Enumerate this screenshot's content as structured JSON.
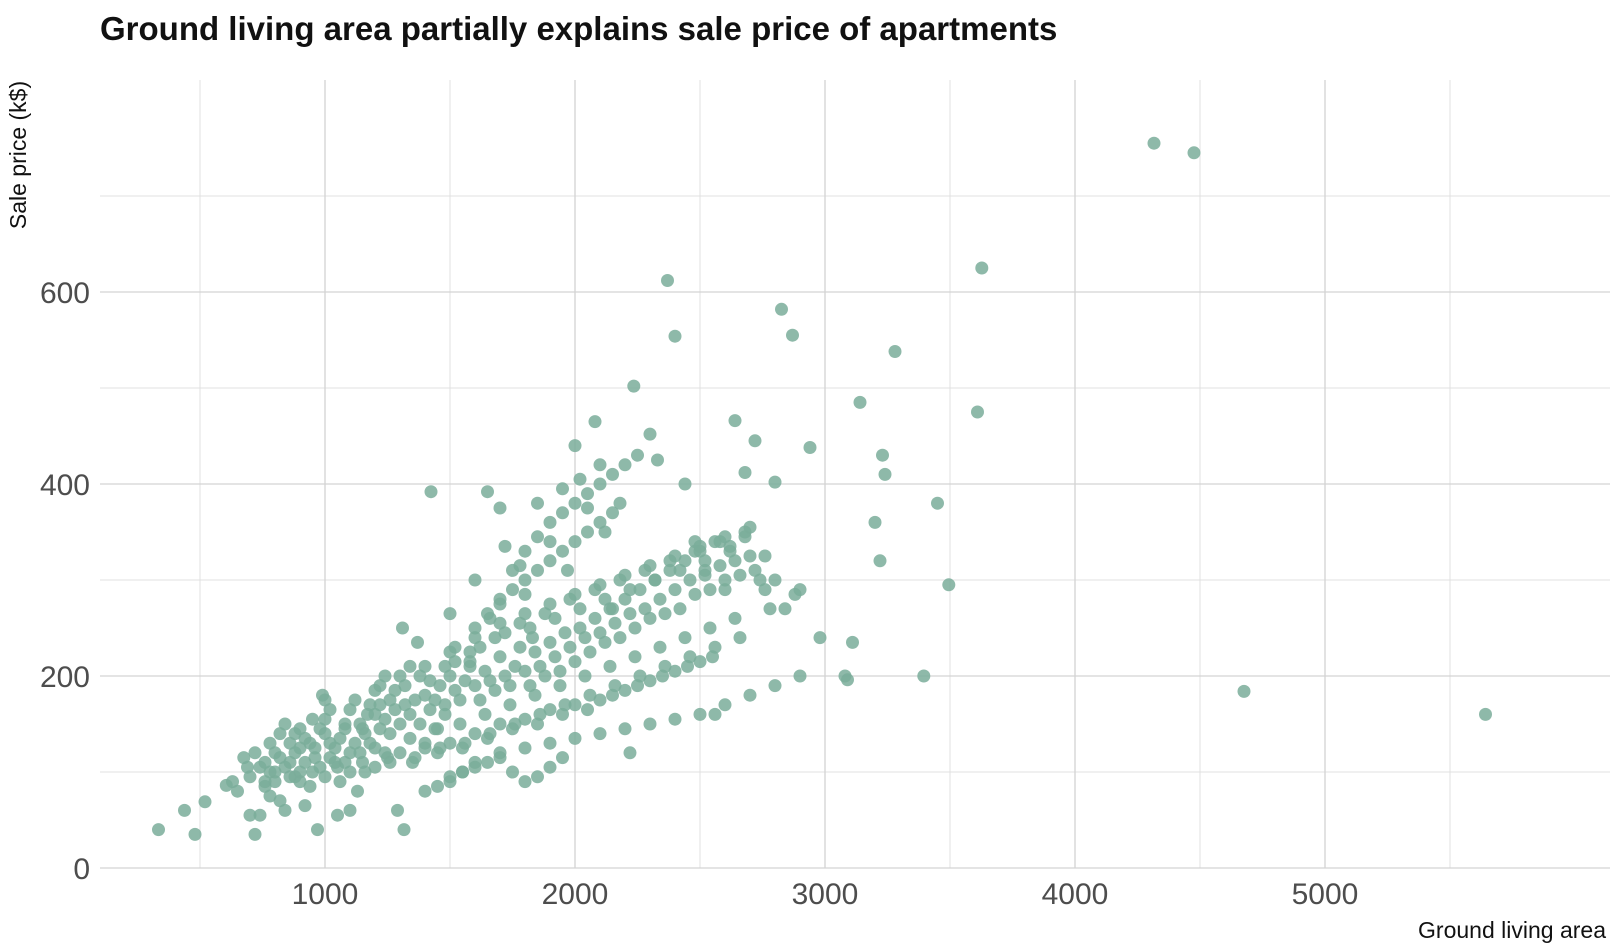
{
  "chart_data": {
    "type": "scatter",
    "title": "Ground living area partially explains sale price of apartments",
    "xlabel": "Ground living area",
    "ylabel": "Sale price (k$)",
    "xlim": [
      200,
      5700
    ],
    "ylim": [
      0,
      700
    ],
    "x_ticks": [
      1000,
      2000,
      3000,
      4000,
      5000
    ],
    "x_tick_labels": [
      "1000",
      "2000",
      "3000",
      "4000",
      "5000"
    ],
    "y_ticks": [
      0,
      200,
      400,
      600
    ],
    "y_tick_labels": [
      "0",
      "200",
      "400",
      "600"
    ],
    "x_minor_ticks": [
      500,
      1500,
      2500,
      3500,
      4500,
      5500
    ],
    "y_minor_ticks": [
      100,
      300,
      500,
      700
    ],
    "grid": true,
    "legend": "none",
    "point_color": "#7aad9a",
    "point_opacity": 0.85,
    "points": [
      [
        334,
        40
      ],
      [
        438,
        60
      ],
      [
        480,
        35
      ],
      [
        520,
        69
      ],
      [
        605,
        86
      ],
      [
        630,
        90
      ],
      [
        650,
        80
      ],
      [
        675,
        115
      ],
      [
        690,
        105
      ],
      [
        700,
        55
      ],
      [
        720,
        35
      ],
      [
        740,
        55
      ],
      [
        760,
        85
      ],
      [
        780,
        130
      ],
      [
        800,
        120
      ],
      [
        820,
        70
      ],
      [
        840,
        60
      ],
      [
        860,
        110
      ],
      [
        880,
        140
      ],
      [
        900,
        125
      ],
      [
        920,
        65
      ],
      [
        950,
        155
      ],
      [
        970,
        40
      ],
      [
        990,
        180
      ],
      [
        1000,
        175
      ],
      [
        1020,
        130
      ],
      [
        1050,
        55
      ],
      [
        1080,
        110
      ],
      [
        1100,
        60
      ],
      [
        1130,
        80
      ],
      [
        1150,
        145
      ],
      [
        1170,
        160
      ],
      [
        1200,
        125
      ],
      [
        1220,
        190
      ],
      [
        1240,
        200
      ],
      [
        1260,
        175
      ],
      [
        1290,
        60
      ],
      [
        1310,
        250
      ],
      [
        1316,
        40
      ],
      [
        1340,
        210
      ],
      [
        1370,
        235
      ],
      [
        1400,
        130
      ],
      [
        1424,
        392
      ],
      [
        1450,
        145
      ],
      [
        1480,
        170
      ],
      [
        1500,
        265
      ],
      [
        1520,
        230
      ],
      [
        1550,
        100
      ],
      [
        1580,
        215
      ],
      [
        1600,
        300
      ],
      [
        1650,
        392
      ],
      [
        1660,
        260
      ],
      [
        1700,
        375
      ],
      [
        1720,
        335
      ],
      [
        1780,
        315
      ],
      [
        1800,
        285
      ],
      [
        1830,
        240
      ],
      [
        1850,
        380
      ],
      [
        1900,
        340
      ],
      [
        1950,
        395
      ],
      [
        1970,
        310
      ],
      [
        2000,
        440
      ],
      [
        2020,
        405
      ],
      [
        2050,
        375
      ],
      [
        2080,
        465
      ],
      [
        2100,
        420
      ],
      [
        2120,
        350
      ],
      [
        2150,
        270
      ],
      [
        2180,
        380
      ],
      [
        2220,
        120
      ],
      [
        2235,
        502
      ],
      [
        2300,
        452
      ],
      [
        2330,
        425
      ],
      [
        2370,
        612
      ],
      [
        2400,
        554
      ],
      [
        2440,
        400
      ],
      [
        2480,
        340
      ],
      [
        2520,
        310
      ],
      [
        2560,
        160
      ],
      [
        2600,
        290
      ],
      [
        2640,
        466
      ],
      [
        2680,
        412
      ],
      [
        2720,
        445
      ],
      [
        2760,
        325
      ],
      [
        2800,
        402
      ],
      [
        2826,
        582
      ],
      [
        2870,
        555
      ],
      [
        2940,
        438
      ],
      [
        2980,
        240
      ],
      [
        3080,
        200
      ],
      [
        3090,
        196
      ],
      [
        3110,
        235
      ],
      [
        3140,
        485
      ],
      [
        3200,
        360
      ],
      [
        3220,
        320
      ],
      [
        3230,
        430
      ],
      [
        3240,
        410
      ],
      [
        3280,
        538
      ],
      [
        3395,
        200
      ],
      [
        3450,
        380
      ],
      [
        3495,
        295
      ],
      [
        3610,
        475
      ],
      [
        3627,
        625
      ],
      [
        4316,
        755
      ],
      [
        4476,
        745
      ],
      [
        4676,
        184
      ],
      [
        5642,
        160
      ],
      [
        760,
        110
      ],
      [
        780,
        100
      ],
      [
        800,
        90
      ],
      [
        820,
        115
      ],
      [
        840,
        105
      ],
      [
        860,
        95
      ],
      [
        880,
        120
      ],
      [
        900,
        100
      ],
      [
        920,
        110
      ],
      [
        940,
        130
      ],
      [
        960,
        115
      ],
      [
        980,
        105
      ],
      [
        1000,
        140
      ],
      [
        1020,
        115
      ],
      [
        1040,
        125
      ],
      [
        1060,
        135
      ],
      [
        1080,
        145
      ],
      [
        1100,
        120
      ],
      [
        1120,
        130
      ],
      [
        1140,
        150
      ],
      [
        1160,
        140
      ],
      [
        1180,
        130
      ],
      [
        1200,
        160
      ],
      [
        1220,
        145
      ],
      [
        1240,
        155
      ],
      [
        1260,
        140
      ],
      [
        1280,
        165
      ],
      [
        1300,
        150
      ],
      [
        1320,
        170
      ],
      [
        1340,
        160
      ],
      [
        1360,
        175
      ],
      [
        1380,
        150
      ],
      [
        1400,
        180
      ],
      [
        1420,
        165
      ],
      [
        1440,
        175
      ],
      [
        1460,
        190
      ],
      [
        1480,
        160
      ],
      [
        1500,
        200
      ],
      [
        1520,
        185
      ],
      [
        1540,
        175
      ],
      [
        1560,
        195
      ],
      [
        1580,
        210
      ],
      [
        1600,
        190
      ],
      [
        1620,
        175
      ],
      [
        1640,
        205
      ],
      [
        1660,
        195
      ],
      [
        1680,
        185
      ],
      [
        1700,
        220
      ],
      [
        1720,
        200
      ],
      [
        1740,
        190
      ],
      [
        1760,
        210
      ],
      [
        1780,
        230
      ],
      [
        1800,
        205
      ],
      [
        1820,
        190
      ],
      [
        1840,
        225
      ],
      [
        1860,
        210
      ],
      [
        1880,
        200
      ],
      [
        1900,
        235
      ],
      [
        1920,
        220
      ],
      [
        1940,
        205
      ],
      [
        1960,
        245
      ],
      [
        1980,
        230
      ],
      [
        2000,
        215
      ],
      [
        2020,
        250
      ],
      [
        2040,
        240
      ],
      [
        2060,
        225
      ],
      [
        2080,
        260
      ],
      [
        2100,
        245
      ],
      [
        2120,
        235
      ],
      [
        2140,
        270
      ],
      [
        2160,
        255
      ],
      [
        2180,
        240
      ],
      [
        2200,
        280
      ],
      [
        2220,
        265
      ],
      [
        2240,
        250
      ],
      [
        2260,
        290
      ],
      [
        2280,
        270
      ],
      [
        2300,
        260
      ],
      [
        2320,
        300
      ],
      [
        2340,
        280
      ],
      [
        2360,
        265
      ],
      [
        2380,
        310
      ],
      [
        2400,
        290
      ],
      [
        2420,
        270
      ],
      [
        2440,
        320
      ],
      [
        2460,
        300
      ],
      [
        2480,
        285
      ],
      [
        2500,
        330
      ],
      [
        2520,
        305
      ],
      [
        2540,
        290
      ],
      [
        2560,
        340
      ],
      [
        2580,
        315
      ],
      [
        2600,
        300
      ],
      [
        2620,
        335
      ],
      [
        2640,
        320
      ],
      [
        2660,
        305
      ],
      [
        2680,
        345
      ],
      [
        2700,
        325
      ],
      [
        2720,
        310
      ],
      [
        2740,
        300
      ],
      [
        2760,
        290
      ],
      [
        2780,
        270
      ],
      [
        2800,
        300
      ],
      [
        2840,
        270
      ],
      [
        2880,
        285
      ],
      [
        2900,
        290
      ],
      [
        900,
        90
      ],
      [
        950,
        100
      ],
      [
        1000,
        95
      ],
      [
        1050,
        105
      ],
      [
        1100,
        100
      ],
      [
        1150,
        110
      ],
      [
        1200,
        105
      ],
      [
        1250,
        115
      ],
      [
        1300,
        120
      ],
      [
        1350,
        110
      ],
      [
        1400,
        125
      ],
      [
        1450,
        120
      ],
      [
        1500,
        130
      ],
      [
        1550,
        125
      ],
      [
        1600,
        140
      ],
      [
        1650,
        135
      ],
      [
        1700,
        150
      ],
      [
        1750,
        145
      ],
      [
        1800,
        155
      ],
      [
        1850,
        150
      ],
      [
        1900,
        165
      ],
      [
        1950,
        160
      ],
      [
        2000,
        170
      ],
      [
        2050,
        165
      ],
      [
        2100,
        175
      ],
      [
        2150,
        180
      ],
      [
        2200,
        185
      ],
      [
        2250,
        190
      ],
      [
        2300,
        195
      ],
      [
        2350,
        200
      ],
      [
        2400,
        205
      ],
      [
        2450,
        210
      ],
      [
        2500,
        215
      ],
      [
        2550,
        220
      ],
      [
        1500,
        90
      ],
      [
        1600,
        110
      ],
      [
        1700,
        120
      ],
      [
        1800,
        125
      ],
      [
        1900,
        130
      ],
      [
        2000,
        135
      ],
      [
        2100,
        140
      ],
      [
        2200,
        145
      ],
      [
        2300,
        150
      ],
      [
        2400,
        155
      ],
      [
        2500,
        160
      ],
      [
        2600,
        170
      ],
      [
        2700,
        180
      ],
      [
        2800,
        190
      ],
      [
        2900,
        200
      ],
      [
        1700,
        280
      ],
      [
        1750,
        310
      ],
      [
        1800,
        330
      ],
      [
        1850,
        345
      ],
      [
        1900,
        360
      ],
      [
        1950,
        370
      ],
      [
        2000,
        380
      ],
      [
        2050,
        390
      ],
      [
        2100,
        400
      ],
      [
        2150,
        410
      ],
      [
        2200,
        420
      ],
      [
        2250,
        430
      ],
      [
        1600,
        250
      ],
      [
        1650,
        265
      ],
      [
        1700,
        275
      ],
      [
        1750,
        290
      ],
      [
        1800,
        300
      ],
      [
        1850,
        310
      ],
      [
        1900,
        320
      ],
      [
        1950,
        330
      ],
      [
        2000,
        340
      ],
      [
        2050,
        350
      ],
      [
        2100,
        360
      ],
      [
        2150,
        370
      ],
      [
        1400,
        80
      ],
      [
        1450,
        85
      ],
      [
        1500,
        95
      ],
      [
        1550,
        100
      ],
      [
        1600,
        105
      ],
      [
        1650,
        110
      ],
      [
        1700,
        115
      ],
      [
        1750,
        100
      ],
      [
        1800,
        90
      ],
      [
        1850,
        95
      ],
      [
        1900,
        105
      ],
      [
        1950,
        115
      ],
      [
        700,
        95
      ],
      [
        720,
        120
      ],
      [
        740,
        105
      ],
      [
        760,
        90
      ],
      [
        780,
        75
      ],
      [
        800,
        100
      ],
      [
        820,
        140
      ],
      [
        840,
        150
      ],
      [
        860,
        130
      ],
      [
        880,
        95
      ],
      [
        900,
        145
      ],
      [
        920,
        135
      ],
      [
        940,
        85
      ],
      [
        960,
        125
      ],
      [
        980,
        145
      ],
      [
        1000,
        155
      ],
      [
        1020,
        165
      ],
      [
        1040,
        110
      ],
      [
        1060,
        90
      ],
      [
        1080,
        150
      ],
      [
        1100,
        165
      ],
      [
        1120,
        175
      ],
      [
        1140,
        120
      ],
      [
        1160,
        100
      ],
      [
        1180,
        170
      ],
      [
        1200,
        185
      ],
      [
        1220,
        170
      ],
      [
        1240,
        120
      ],
      [
        1260,
        110
      ],
      [
        1280,
        185
      ],
      [
        1300,
        200
      ],
      [
        1320,
        190
      ],
      [
        1340,
        135
      ],
      [
        1360,
        115
      ],
      [
        1380,
        200
      ],
      [
        1400,
        210
      ],
      [
        1420,
        195
      ],
      [
        1440,
        145
      ],
      [
        1460,
        125
      ],
      [
        1480,
        210
      ],
      [
        1500,
        225
      ],
      [
        1520,
        215
      ],
      [
        1540,
        150
      ],
      [
        1560,
        130
      ],
      [
        1580,
        225
      ],
      [
        1600,
        240
      ],
      [
        1620,
        230
      ],
      [
        1640,
        160
      ],
      [
        1660,
        140
      ],
      [
        1680,
        240
      ],
      [
        1700,
        255
      ],
      [
        1720,
        245
      ],
      [
        1740,
        170
      ],
      [
        1760,
        150
      ],
      [
        1780,
        255
      ],
      [
        1800,
        265
      ],
      [
        1820,
        250
      ],
      [
        1840,
        180
      ],
      [
        1860,
        160
      ],
      [
        1880,
        265
      ],
      [
        1900,
        275
      ],
      [
        1920,
        260
      ],
      [
        1940,
        190
      ],
      [
        1960,
        170
      ],
      [
        1980,
        280
      ],
      [
        2000,
        285
      ],
      [
        2020,
        270
      ],
      [
        2040,
        200
      ],
      [
        2060,
        180
      ],
      [
        2080,
        290
      ],
      [
        2100,
        295
      ],
      [
        2120,
        280
      ],
      [
        2140,
        210
      ],
      [
        2160,
        190
      ],
      [
        2180,
        300
      ],
      [
        2200,
        305
      ],
      [
        2220,
        290
      ],
      [
        2240,
        220
      ],
      [
        2260,
        200
      ],
      [
        2280,
        310
      ],
      [
        2300,
        315
      ],
      [
        2320,
        300
      ],
      [
        2340,
        230
      ],
      [
        2360,
        210
      ],
      [
        2380,
        320
      ],
      [
        2400,
        325
      ],
      [
        2420,
        310
      ],
      [
        2440,
        240
      ],
      [
        2460,
        220
      ],
      [
        2480,
        330
      ],
      [
        2500,
        335
      ],
      [
        2520,
        320
      ],
      [
        2540,
        250
      ],
      [
        2560,
        230
      ],
      [
        2580,
        340
      ],
      [
        2600,
        345
      ],
      [
        2620,
        330
      ],
      [
        2640,
        260
      ],
      [
        2660,
        240
      ],
      [
        2680,
        350
      ],
      [
        2700,
        355
      ]
    ]
  }
}
